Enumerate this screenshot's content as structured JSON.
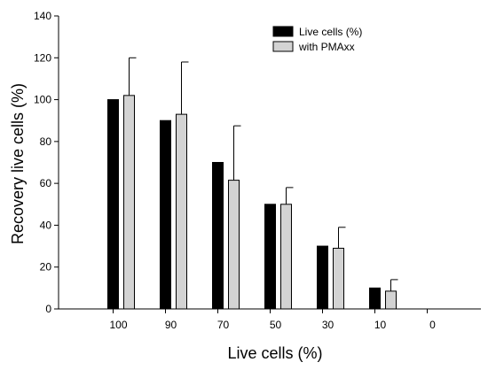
{
  "chart_data": {
    "type": "bar",
    "xlabel": "Live cells (%)",
    "ylabel": "Recovery live cells (%)",
    "ylim": [
      0,
      140
    ],
    "yticks": [
      0,
      20,
      40,
      60,
      80,
      100,
      120,
      140
    ],
    "categories": [
      "100",
      "90",
      "70",
      "50",
      "30",
      "10",
      "0"
    ],
    "series": [
      {
        "name": "Live cells (%)",
        "color": "#000000",
        "values": [
          100,
          90,
          70,
          50,
          30,
          10,
          0
        ],
        "errors": [
          0,
          0,
          0,
          0,
          0,
          0,
          0
        ]
      },
      {
        "name": "with PMAxx",
        "color": "#d3d3d3",
        "values": [
          102,
          93,
          61.5,
          50,
          29,
          8.5,
          0
        ],
        "errors": [
          18,
          25,
          26,
          8,
          10,
          5.5,
          0
        ]
      }
    ],
    "legend": "top-right",
    "grid": false
  }
}
